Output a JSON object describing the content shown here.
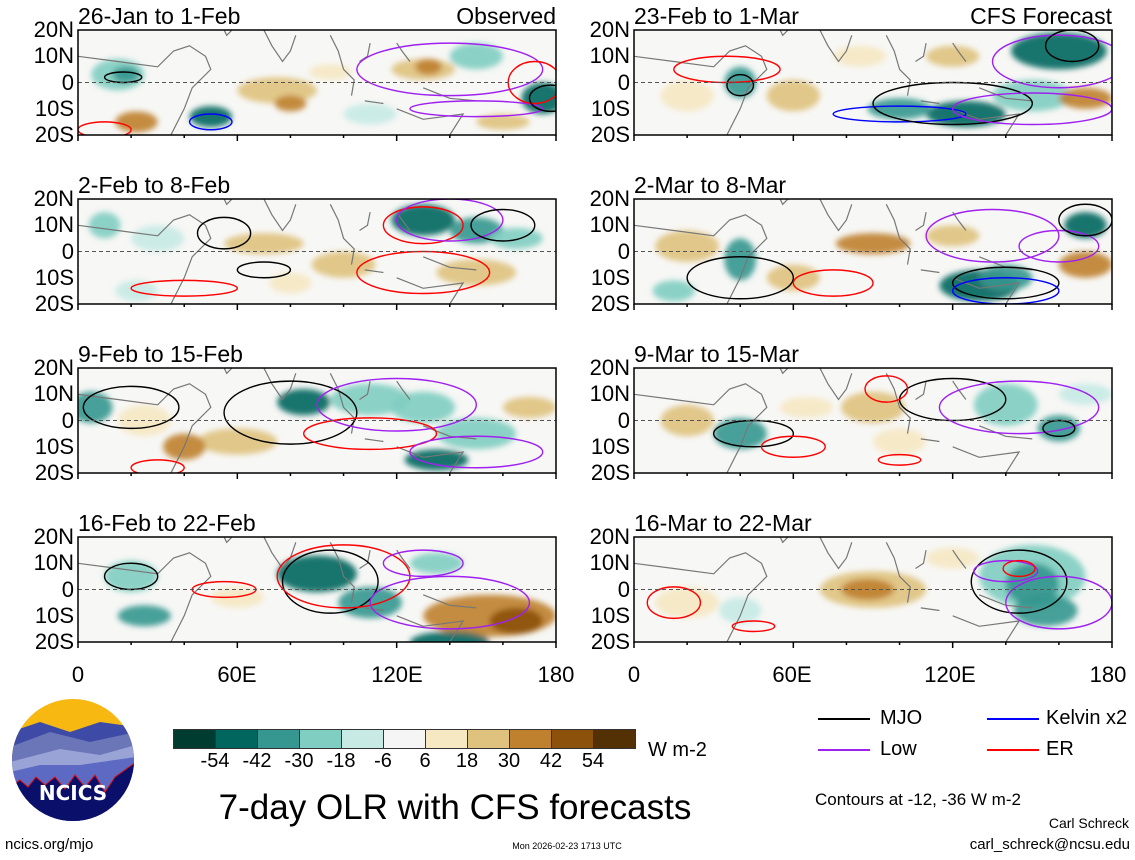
{
  "panels": [
    {
      "title": "26-Jan to 1-Feb",
      "label": "Observed"
    },
    {
      "title": "23-Feb to 1-Mar",
      "label": "CFS Forecast"
    },
    {
      "title": "2-Feb to 8-Feb",
      "label": ""
    },
    {
      "title": "2-Mar to 8-Mar",
      "label": ""
    },
    {
      "title": "9-Feb to 15-Feb",
      "label": ""
    },
    {
      "title": "9-Mar to 15-Mar",
      "label": ""
    },
    {
      "title": "16-Feb to 22-Feb",
      "label": ""
    },
    {
      "title": "16-Mar to 22-Mar",
      "label": ""
    }
  ],
  "lat_labels": [
    "20N",
    "10N",
    "0",
    "10S",
    "20S"
  ],
  "lon_labels": [
    "0",
    "60E",
    "120E",
    "180"
  ],
  "colorbar": {
    "colors": [
      "#003c30",
      "#01665e",
      "#35978f",
      "#80cdc1",
      "#c7eae5",
      "#f5f5f5",
      "#f6e8c3",
      "#dfc27d",
      "#bf812d",
      "#8c510a",
      "#543005"
    ],
    "labels": [
      "-54",
      "-42",
      "-30",
      "-18",
      "-6",
      "6",
      "18",
      "30",
      "42",
      "54"
    ],
    "units": "W m-2"
  },
  "legend": [
    {
      "label": "MJO",
      "color": "#000000"
    },
    {
      "label": "Kelvin x2",
      "color": "#0000ff"
    },
    {
      "label": "Low",
      "color": "#a020f0"
    },
    {
      "label": "ER",
      "color": "#ff0000"
    }
  ],
  "contour_note": "Contours at -12, -36 W m-2",
  "title": "7-day OLR with CFS forecasts",
  "logo_text": "NCICS",
  "url": "ncics.org/mjo",
  "timestamp": "Mon 2026-02-23 1713 UTC",
  "author": "Carl Schreck",
  "email": "carl_schreck@ncsu.edu"
}
